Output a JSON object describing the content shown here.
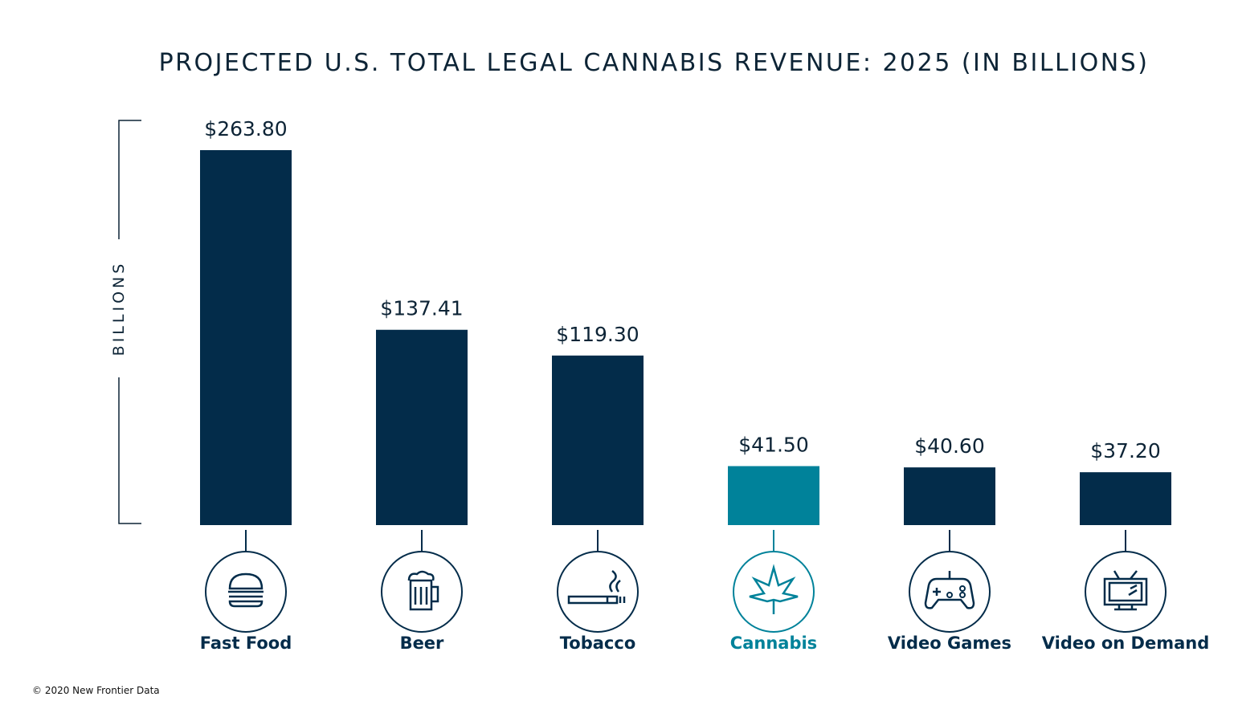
{
  "chart_data": {
    "type": "bar",
    "title": "PROJECTED U.S. TOTAL LEGAL CANNABIS REVENUE: 2025 (IN BILLIONS)",
    "ylabel": "BILLIONS",
    "xlabel": "",
    "categories": [
      "Fast Food",
      "Beer",
      "Tobacco",
      "Cannabis",
      "Video Games",
      "Video on Demand"
    ],
    "values": [
      263.8,
      137.41,
      119.3,
      41.5,
      40.6,
      37.2
    ],
    "data_labels": [
      "$263.80",
      "$137.41",
      "$119.30",
      "$41.50",
      "$40.60",
      "$37.20"
    ],
    "icons": [
      "burger-icon",
      "beer-mug-icon",
      "cigarette-icon",
      "cannabis-leaf-icon",
      "game-controller-icon",
      "television-icon"
    ],
    "highlight_index": 3,
    "ylim": [
      0,
      263.8
    ],
    "grid": false,
    "legend": "none",
    "colors": {
      "bar": "#032c4a",
      "highlight": "#00829a",
      "text": "#0d2436"
    }
  },
  "footer": {
    "credit": "© 2020  New Frontier Data"
  }
}
